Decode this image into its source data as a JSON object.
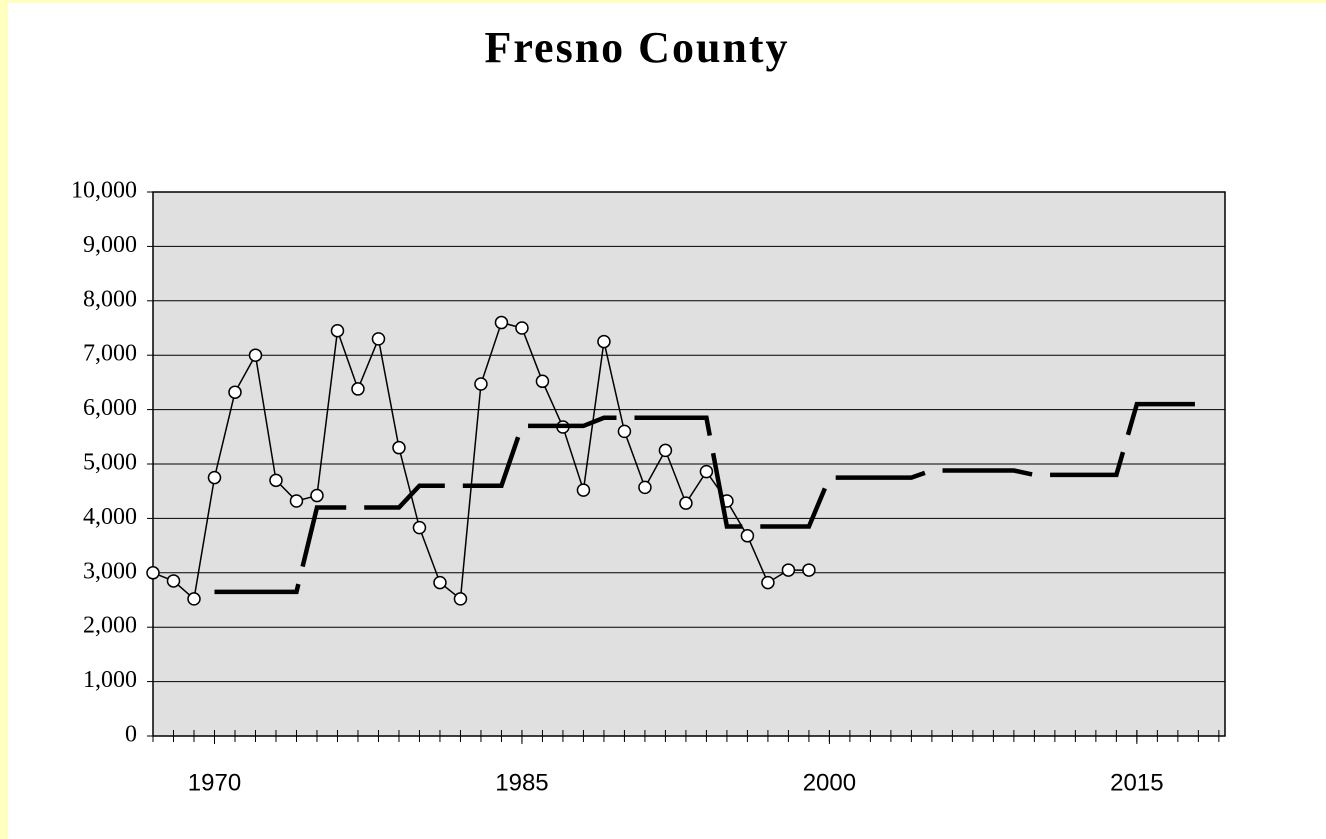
{
  "chart_data": {
    "type": "line",
    "title": "Fresno County",
    "xlim": [
      1967,
      2019.3
    ],
    "xticks": [
      1970,
      1985,
      2000,
      2015
    ],
    "ylim": [
      0,
      10000
    ],
    "yticks": [
      0,
      {
        "value": 1000,
        "label": "1,000"
      },
      {
        "value": 2000,
        "label": "2,000"
      },
      {
        "value": 3000,
        "label": "3,000"
      },
      {
        "value": 4000,
        "label": "4,000"
      },
      {
        "value": 5000,
        "label": "5,000"
      },
      {
        "value": 6000,
        "label": "6,000"
      },
      {
        "value": 7000,
        "label": "7,000"
      },
      {
        "value": 8000,
        "label": "8,000"
      },
      {
        "value": 9000,
        "label": "9,000"
      },
      {
        "value": 10000,
        "label": "10,000"
      }
    ],
    "grid": true,
    "series": [
      {
        "color": "#000000",
        "marker": "circle",
        "x": [
          1967,
          1968,
          1969,
          1970,
          1971,
          1972,
          1973,
          1974,
          1975,
          1976,
          1977,
          1978,
          1979,
          1980,
          1981,
          1982,
          1983,
          1984,
          1985,
          1986,
          1987,
          1988,
          1989,
          1990,
          1991,
          1992,
          1993,
          1994,
          1995,
          1996,
          1997,
          1998,
          1999
        ],
        "values": [
          3000,
          2850,
          2520,
          4750,
          6320,
          7000,
          4700,
          4320,
          4420,
          7450,
          6380,
          7300,
          5300,
          3830,
          2820,
          2520,
          6470,
          7600,
          7500,
          6520,
          5680,
          4520,
          7250,
          5600,
          4570,
          5250,
          4280,
          4860,
          4320,
          3680,
          2820,
          3050,
          3050
        ]
      },
      {
        "color": "#000000",
        "dashed": true,
        "x": [
          1970,
          1971,
          1972,
          1973,
          1974,
          1975,
          1976,
          1977,
          1978,
          1979,
          1980,
          1981,
          1982,
          1983,
          1984,
          1985,
          1986,
          1987,
          1988,
          1989,
          1990,
          1991,
          1992,
          1993,
          1994,
          1995,
          1996,
          1997,
          1998,
          1999,
          2000,
          2001,
          2002,
          2003,
          2004,
          2005,
          2006,
          2007,
          2008,
          2009,
          2010,
          2011,
          2012,
          2013,
          2014,
          2015,
          2016,
          2017,
          2018
        ],
        "values": [
          2650,
          2650,
          2650,
          2650,
          2650,
          4200,
          4200,
          4200,
          4200,
          4200,
          4600,
          4600,
          4600,
          4600,
          4600,
          5700,
          5700,
          5700,
          5700,
          5850,
          5850,
          5850,
          5850,
          5850,
          5850,
          3850,
          3850,
          3850,
          3850,
          3850,
          4750,
          4750,
          4750,
          4750,
          4750,
          4880,
          4880,
          4880,
          4880,
          4880,
          4800,
          4800,
          4800,
          4800,
          4800,
          6100,
          6100,
          6100,
          6100
        ]
      }
    ]
  }
}
